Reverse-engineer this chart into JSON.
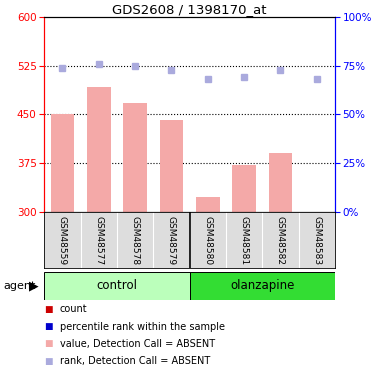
{
  "title": "GDS2608 / 1398170_at",
  "samples": [
    "GSM48559",
    "GSM48577",
    "GSM48578",
    "GSM48579",
    "GSM48580",
    "GSM48581",
    "GSM48582",
    "GSM48583"
  ],
  "bar_values": [
    450,
    492,
    468,
    442,
    323,
    372,
    390,
    300
  ],
  "rank_values": [
    74,
    76,
    75,
    73,
    68,
    69,
    73,
    68
  ],
  "bar_color": "#f4a9a8",
  "rank_color": "#aaaadd",
  "ylim_left": [
    300,
    600
  ],
  "ylim_right": [
    0,
    100
  ],
  "yticks_left": [
    300,
    375,
    450,
    525,
    600
  ],
  "yticks_right": [
    0,
    25,
    50,
    75,
    100
  ],
  "hlines": [
    375,
    450,
    525
  ],
  "control_color": "#bbffbb",
  "olanzapine_color": "#33dd33",
  "agent_label": "agent",
  "legend_items": [
    {
      "color": "#cc0000",
      "label": "count"
    },
    {
      "color": "#0000cc",
      "label": "percentile rank within the sample"
    },
    {
      "color": "#f4a9a8",
      "label": "value, Detection Call = ABSENT"
    },
    {
      "color": "#aaaadd",
      "label": "rank, Detection Call = ABSENT"
    }
  ]
}
